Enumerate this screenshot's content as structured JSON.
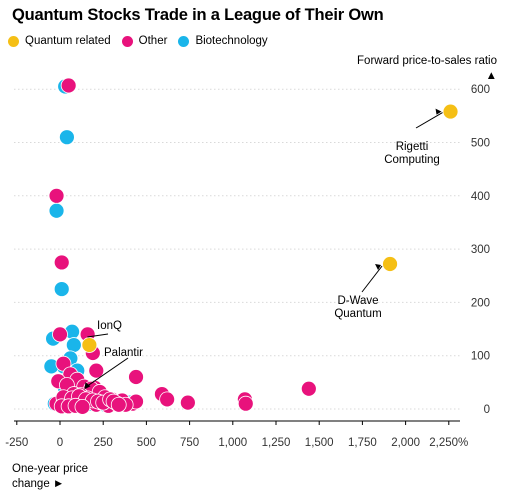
{
  "chart_data": {
    "type": "scatter",
    "title": "Quantum Stocks Trade in a League of Their Own",
    "xlabel": "One-year price change ►",
    "ylabel": "Forward price-to-sales ratio ▲",
    "xlim": [
      -280,
      2400
    ],
    "ylim": [
      -28,
      640
    ],
    "x_ticks": [
      -250,
      0,
      250,
      500,
      750,
      1000,
      1250,
      1500,
      1750,
      2000,
      2250
    ],
    "x_tick_labels": [
      "-250",
      "0",
      "250",
      "500",
      "750",
      "1,000",
      "1,250",
      "1,500",
      "1,750",
      "2,000",
      "2,250%"
    ],
    "y_ticks": [
      0,
      100,
      200,
      300,
      400,
      500,
      600
    ],
    "y_tick_labels": [
      "0",
      "100",
      "200",
      "300",
      "400",
      "500",
      "600"
    ],
    "legend_position": "top-left",
    "series": [
      {
        "name": "Quantum related",
        "color": "#f5bf15",
        "x": [
          2260,
          1910,
          170
        ],
        "y": [
          558,
          272,
          120
        ]
      },
      {
        "name": "Other",
        "color": "#e8127c",
        "x": [
          50,
          -20,
          10,
          0,
          160,
          190,
          20,
          210,
          60,
          100,
          -10,
          40,
          140,
          200,
          180,
          230,
          440,
          80,
          120,
          260,
          160,
          300,
          350,
          360,
          420,
          440,
          590,
          620,
          740,
          1070,
          1075,
          1440,
          -20,
          20,
          60,
          90,
          130,
          170,
          210,
          240,
          280,
          330,
          380,
          20,
          70,
          110,
          150,
          190,
          220,
          250,
          290,
          310,
          340,
          10,
          50,
          90,
          130
        ],
        "y": [
          607,
          400,
          275,
          140,
          140,
          105,
          85,
          72,
          65,
          55,
          52,
          45,
          42,
          40,
          38,
          32,
          60,
          28,
          26,
          22,
          20,
          18,
          12,
          16,
          10,
          14,
          28,
          18,
          12,
          18,
          10,
          38,
          10,
          12,
          8,
          15,
          10,
          13,
          8,
          12,
          6,
          10,
          8,
          22,
          20,
          24,
          18,
          16,
          14,
          12,
          18,
          14,
          8,
          5,
          5,
          6,
          4
        ]
      },
      {
        "name": "Biotechnology",
        "color": "#1ab5ea",
        "x": [
          30,
          40,
          -20,
          10,
          70,
          80,
          -40,
          60,
          20,
          -50,
          100,
          30,
          160,
          240,
          400,
          130,
          -30,
          0,
          20,
          50,
          90,
          120,
          140,
          180,
          200,
          260
        ],
        "y": [
          605,
          510,
          372,
          225,
          145,
          120,
          132,
          95,
          80,
          80,
          72,
          38,
          28,
          20,
          12,
          22,
          10,
          14,
          12,
          15,
          10,
          8,
          14,
          10,
          12,
          8
        ]
      }
    ],
    "annotations": [
      {
        "text": "Rigetti Computing",
        "lines": [
          "Rigetti",
          "Computing"
        ],
        "x": 2260,
        "y": 558
      },
      {
        "text": "D-Wave Quantum",
        "lines": [
          "D-Wave",
          "Quantum"
        ],
        "x": 1910,
        "y": 272
      },
      {
        "text": "IonQ",
        "lines": [
          "IonQ"
        ],
        "x": 170,
        "y": 120
      },
      {
        "text": "Palantir",
        "lines": [
          "Palantir"
        ],
        "x": 130,
        "y": 52
      }
    ]
  }
}
